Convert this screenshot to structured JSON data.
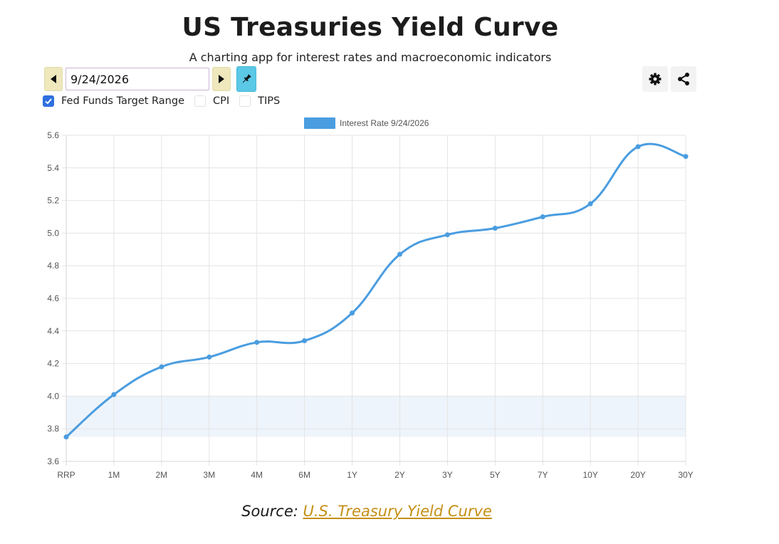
{
  "header": {
    "title": "US Treasuries Yield Curve",
    "subtitle": "A charting app for interest rates and macroeconomic indicators"
  },
  "toolbar": {
    "date_value": "9/24/2026",
    "icons": {
      "prev": "caret-left-icon",
      "next": "caret-right-icon",
      "pin": "pin-icon",
      "settings": "gear-icon",
      "share": "share-icon"
    }
  },
  "options": [
    {
      "label": "Fed Funds Target Range",
      "checked": true
    },
    {
      "label": "CPI",
      "checked": false
    },
    {
      "label": "TIPS",
      "checked": false
    }
  ],
  "chart_data": {
    "type": "line",
    "categories": [
      "RRP",
      "1M",
      "2M",
      "3M",
      "4M",
      "6M",
      "1Y",
      "2Y",
      "3Y",
      "5Y",
      "7Y",
      "10Y",
      "20Y",
      "30Y"
    ],
    "series": [
      {
        "name": "Interest Rate 9/24/2026",
        "values": [
          3.75,
          4.01,
          4.18,
          4.24,
          4.33,
          4.34,
          4.51,
          4.87,
          4.99,
          5.03,
          5.1,
          5.18,
          5.53,
          5.47
        ],
        "color": "#4a9de0"
      }
    ],
    "band": {
      "label": "Fed Funds Target Range",
      "low": 3.75,
      "high": 4.0,
      "color": "#eef4fb"
    },
    "ylim": [
      3.6,
      5.6
    ],
    "yticks": [
      "5.6",
      "5.4",
      "5.2",
      "5.0",
      "4.8",
      "4.6",
      "4.4",
      "4.2",
      "4.0",
      "3.8",
      "3.6"
    ],
    "xlabel": "",
    "ylabel": "",
    "grid": true,
    "legend": "top-center"
  },
  "footer": {
    "source_prefix": "Source: ",
    "source_link": "U.S. Treasury Yield Curve"
  }
}
